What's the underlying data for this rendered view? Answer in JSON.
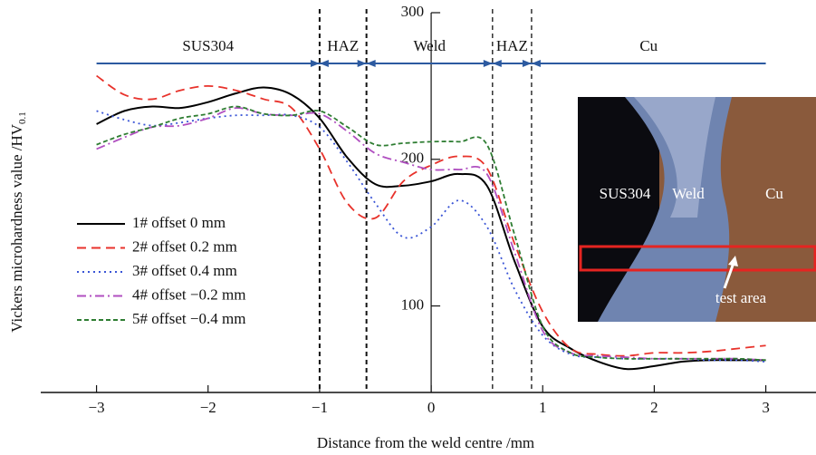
{
  "chart_data": {
    "type": "line",
    "x_label": "Distance from the weld centre /mm",
    "y_label": "Vickers microhardness value /HV",
    "y_label_sub": "0.1",
    "xlim": [
      -3.5,
      3.45
    ],
    "ylim": [
      41,
      300
    ],
    "xticks": [
      {
        "value": -3,
        "label": "−3"
      },
      {
        "value": -2,
        "label": "−2"
      },
      {
        "value": -1,
        "label": "−1"
      },
      0,
      1,
      2,
      3
    ],
    "yticks": [
      100,
      200,
      300
    ],
    "region_bounds": [
      -3,
      -1,
      -0.58,
      0.55,
      0.9,
      3
    ],
    "regions": [
      "SUS304",
      "HAZ",
      "Weld",
      "HAZ",
      "Cu"
    ],
    "x": [
      -3,
      -2.75,
      -2.5,
      -2.25,
      -2,
      -1.75,
      -1.5,
      -1.25,
      -1,
      -0.75,
      -0.5,
      -0.25,
      0,
      0.25,
      0.5,
      0.75,
      1,
      1.25,
      1.5,
      1.75,
      2,
      2.25,
      2.5,
      2.75,
      3
    ],
    "series": [
      {
        "name": "1# offset 0 mm",
        "color": "#000000",
        "linestyle": "solid",
        "values": [
          224,
          233,
          236,
          235,
          239,
          245,
          249,
          244,
          228,
          201,
          183,
          182,
          185,
          190,
          182,
          130,
          86,
          71,
          62,
          57,
          59,
          62,
          63,
          63,
          63
        ]
      },
      {
        "name": "2# offset 0.2 mm",
        "color": "#e8322b",
        "linestyle": "dashed",
        "values": [
          257,
          244,
          241,
          247,
          250,
          247,
          241,
          235,
          207,
          170,
          160,
          185,
          196,
          202,
          194,
          142,
          96,
          71,
          67,
          66,
          68,
          68,
          69,
          71,
          73
        ]
      },
      {
        "name": "3# offset 0.4 mm",
        "color": "#3a55d6",
        "linestyle": "dotted",
        "values": [
          233,
          227,
          223,
          225,
          228,
          230,
          230,
          230,
          222,
          198,
          170,
          147,
          154,
          172,
          154,
          111,
          80,
          67,
          65,
          64,
          64,
          64,
          63,
          63,
          62
        ]
      },
      {
        "name": "4# offset −0.2 mm",
        "color": "#b04fc0",
        "linestyle": "dashdot",
        "values": [
          207,
          215,
          222,
          223,
          228,
          235,
          231,
          230,
          231,
          219,
          204,
          198,
          193,
          193,
          190,
          136,
          83,
          68,
          66,
          65,
          64,
          64,
          64,
          64,
          63
        ]
      },
      {
        "name": "5# offset −0.4 mm",
        "color": "#2e7d32",
        "linestyle": "shortdash",
        "values": [
          210,
          217,
          222,
          228,
          231,
          236,
          231,
          230,
          233,
          222,
          210,
          211,
          212,
          212,
          210,
          148,
          86,
          68,
          65,
          64,
          64,
          64,
          64,
          64,
          63
        ]
      }
    ],
    "inset": {
      "labels": [
        "SUS304",
        "Weld",
        "Cu",
        "test area"
      ]
    }
  }
}
